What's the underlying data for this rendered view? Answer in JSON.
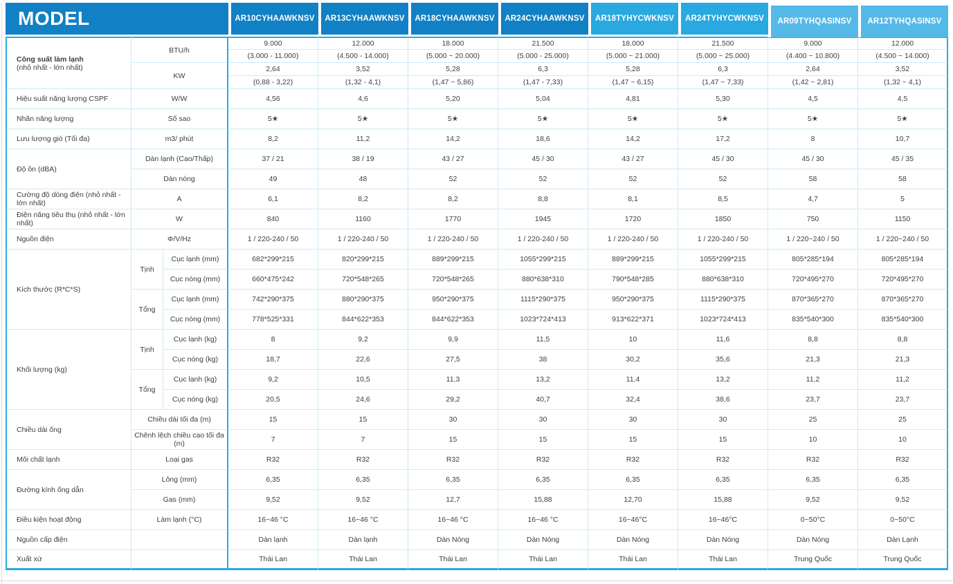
{
  "header": {
    "title": "MODEL",
    "models": [
      "AR10CYHAAWKNSV",
      "AR13CYHAAWKNSV",
      "AR18CYHAAWKNSV",
      "AR24CYHAAWKNSV",
      "AR18TYHYCWKNSV",
      "AR24TYHYCWKNSV",
      "AR09TYHQASINSV",
      "AR12TYHQASINSV"
    ]
  },
  "colors": {
    "header_group_1": "#1280c4",
    "header_group_2": "#29a9e0",
    "header_group_3": "#55b9e8",
    "table_border": "#29a9e0",
    "grid_line": "#cdeaf7"
  },
  "rows": {
    "capacity": {
      "label": "Công suất làm lạnh",
      "sublabel": "(nhỏ nhất - lớn nhất)",
      "btu_unit": "BTU/h",
      "kw_unit": "KW",
      "btu_values": [
        "9.000",
        "12.000",
        "18.000",
        "21.500",
        "18.000",
        "21.500",
        "9.000",
        "12.000"
      ],
      "btu_ranges": [
        "(3.000 - 11.000)",
        "(4.500 - 14.000)",
        "(5.000 ~ 20.000)",
        "(5.000 - 25.000)",
        "(5.000 ~ 21.000)",
        "(5.000 ~ 25.000)",
        "(4.400 ~ 10.800)",
        "(4.500 ~ 14.000)"
      ],
      "kw_values": [
        "2,64",
        "3,52",
        "5,28",
        "6,3",
        "5,28",
        "6,3",
        "2,64",
        "3,52"
      ],
      "kw_ranges": [
        "(0,88 - 3,22)",
        "(1,32 - 4,1)",
        "(1,47 ~ 5,86)",
        "(1,47 - 7,33)",
        "(1,47 ~ 6,15)",
        "(1,47 ~ 7,33)",
        "(1,42 ~ 2,81)",
        "(1,32 ~ 4,1)"
      ]
    },
    "cspf": {
      "label": "Hiệu suất năng lượng CSPF",
      "unit": "W/W",
      "values": [
        "4,56",
        "4,6",
        "5,20",
        "5,04",
        "4,81",
        "5,30",
        "4,5",
        "4,5"
      ]
    },
    "energy_label": {
      "label": "Nhãn năng lượng",
      "unit": "Số sao",
      "values": [
        "5★",
        "5★",
        "5★",
        "5★",
        "5★",
        "5★",
        "5★",
        "5★"
      ]
    },
    "airflow": {
      "label": "Lưu lượng gió (Tối đa)",
      "unit": "m3/ phút",
      "values": [
        "8,2",
        "11,2",
        "14,2",
        "18,6",
        "14,2",
        "17,2",
        "8",
        "10,7"
      ]
    },
    "noise": {
      "label": "Độ ồn (dBA)",
      "indoor_unit": "Dàn lạnh (Cao/Thấp)",
      "outdoor_unit": "Dàn nóng",
      "indoor_values": [
        "37 / 21",
        "38 / 19",
        "43 / 27",
        "45 / 30",
        "43 / 27",
        "45 / 30",
        "45 / 30",
        "45 / 35"
      ],
      "outdoor_values": [
        "49",
        "48",
        "52",
        "52",
        "52",
        "52",
        "58",
        "58"
      ]
    },
    "current": {
      "label": "Cường độ dòng điện (nhỏ nhất - lớn nhất)",
      "unit": "A",
      "values": [
        "6,1",
        "8,2",
        "8,2",
        "8,8",
        "8,1",
        "8,5",
        "4,7",
        "5"
      ]
    },
    "power": {
      "label": "Điện năng tiêu thụ (nhỏ nhất - lớn nhất)",
      "unit": "W",
      "values": [
        "840",
        "1160",
        "1770",
        "1945",
        "1720",
        "1850",
        "750",
        "1150"
      ]
    },
    "power_supply": {
      "label": "Nguồn điện",
      "unit": "Φ/V/Hz",
      "values": [
        "1 / 220-240 / 50",
        "1 / 220-240 / 50",
        "1 / 220-240 / 50",
        "1 / 220-240 / 50",
        "1 / 220-240 / 50",
        "1 / 220-240 / 50",
        "1 / 220~240 / 50",
        "1 / 220~240 / 50"
      ]
    },
    "dimensions": {
      "label": "Kích thước (R*C*S)",
      "net_label": "Tịnh",
      "gross_label": "Tổng",
      "net_indoor_unit": "Cục lạnh (mm)",
      "net_outdoor_unit": "Cục nóng (mm)",
      "gross_indoor_unit": "Cục lạnh (mm)",
      "gross_outdoor_unit": "Cục nóng (mm)",
      "net_indoor": [
        "682*299*215",
        "820*299*215",
        "889*299*215",
        "1055*299*215",
        "889*299*215",
        "1055*299*215",
        "805*285*194",
        "805*285*194"
      ],
      "net_outdoor": [
        "660*475*242",
        "720*548*265",
        "720*548*265",
        "880*638*310",
        "790*548*285",
        "880*638*310",
        "720*495*270",
        "720*495*270"
      ],
      "gross_indoor": [
        "742*290*375",
        "880*290*375",
        "950*290*375",
        "1115*290*375",
        "950*290*375",
        "1115*290*375",
        "870*365*270",
        "870*365*270"
      ],
      "gross_outdoor": [
        "778*525*331",
        "844*622*353",
        "844*622*353",
        "1023*724*413",
        "913*622*371",
        "1023*724*413",
        "835*540*300",
        "835*540*300"
      ]
    },
    "weight": {
      "label": "Khối lượng (kg)",
      "net_label": "Tịnh",
      "gross_label": "Tổng",
      "net_indoor_unit": "Cục lạnh (kg)",
      "net_outdoor_unit": "Cục nóng (kg)",
      "gross_indoor_unit": "Cục lạnh (kg)",
      "gross_outdoor_unit": "Cục nóng (kg)",
      "net_indoor": [
        "8",
        "9,2",
        "9,9",
        "11,5",
        "10",
        "11,6",
        "8,8",
        "8,8"
      ],
      "net_outdoor": [
        "18,7",
        "22,6",
        "27,5",
        "38",
        "30,2",
        "35,6",
        "21,3",
        "21,3"
      ],
      "gross_indoor": [
        "9,2",
        "10,5",
        "11,3",
        "13,2",
        "11,4",
        "13,2",
        "11,2",
        "11,2"
      ],
      "gross_outdoor": [
        "20,5",
        "24,6",
        "29,2",
        "40,7",
        "32,4",
        "38,6",
        "23,7",
        "23,7"
      ]
    },
    "pipe_length": {
      "label": "Chiều dài ống",
      "max_length_unit": "Chiều dài tối đa (m)",
      "max_height_unit": "Chênh lệch chiều cao tối đa (m)",
      "max_length": [
        "15",
        "15",
        "30",
        "30",
        "30",
        "30",
        "25",
        "25"
      ],
      "max_height": [
        "7",
        "7",
        "15",
        "15",
        "15",
        "15",
        "10",
        "10"
      ]
    },
    "refrigerant": {
      "label": "Môi chất lạnh",
      "unit": "Loại gas",
      "values": [
        "R32",
        "R32",
        "R32",
        "R32",
        "R32",
        "R32",
        "R32",
        "R32"
      ]
    },
    "pipe_diameter": {
      "label": "Đường kính ống dẫn",
      "liquid_unit": "Lỏng (mm)",
      "gas_unit": "Gas (mm)",
      "liquid": [
        "6,35",
        "6,35",
        "6,35",
        "6,35",
        "6,35",
        "6,35",
        "6,35",
        "6,35"
      ],
      "gas": [
        "9,52",
        "9,52",
        "12,7",
        "15,88",
        "12,70",
        "15,88",
        "9,52",
        "9,52"
      ]
    },
    "operating": {
      "label": "Điều kiện hoạt động",
      "unit": "Làm lạnh (°C)",
      "values": [
        "16~46 °C",
        "16~46 °C",
        "16~46 °C",
        "16~46 °C",
        "16~46°C",
        "16~46°C",
        "0~50°C",
        "0~50°C"
      ]
    },
    "power_connection": {
      "label": "Nguồn cấp điện",
      "unit": "",
      "values": [
        "Dàn lạnh",
        "Dàn lạnh",
        "Dàn Nóng",
        "Dàn Nóng",
        "Dàn Nóng",
        "Dàn Nóng",
        "Dàn Nóng",
        "Dàn Lạnh"
      ]
    },
    "origin": {
      "label": "Xuất xứ",
      "unit": "",
      "values": [
        "Thái Lan",
        "Thái Lan",
        "Thái Lan",
        "Thái Lan",
        "Thái Lan",
        "Thái Lan",
        "Trung Quốc",
        "Trung Quốc"
      ]
    }
  }
}
